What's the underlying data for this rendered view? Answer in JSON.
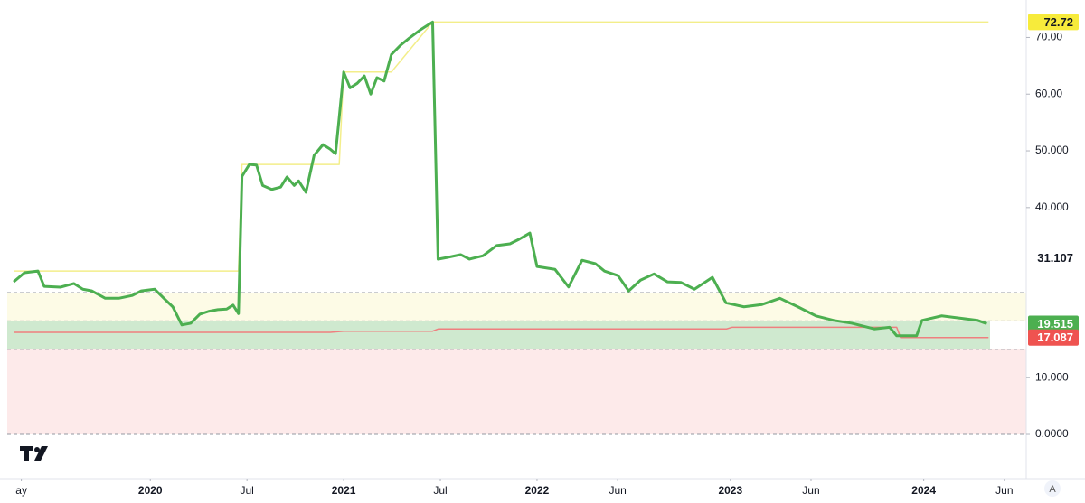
{
  "chart_data": {
    "type": "line",
    "grid": false,
    "xlim": [
      2019.26,
      2024.53
    ],
    "ylim": [
      -7.8,
      76.6
    ],
    "xticks": [
      {
        "value": 2019.333,
        "label": "ay"
      },
      {
        "value": 2020,
        "label": "2020"
      },
      {
        "value": 2020.5,
        "label": "Jul"
      },
      {
        "value": 2021,
        "label": "2021"
      },
      {
        "value": 2021.5,
        "label": "Jul"
      },
      {
        "value": 2022,
        "label": "2022"
      },
      {
        "value": 2022.417,
        "label": "Jun"
      },
      {
        "value": 2023,
        "label": "2023"
      },
      {
        "value": 2023.417,
        "label": "Jun"
      },
      {
        "value": 2024,
        "label": "2024"
      },
      {
        "value": 2024.417,
        "label": "Jun"
      }
    ],
    "yticks": [
      {
        "value": 70,
        "label": "70.00"
      },
      {
        "value": 60,
        "label": "60.00"
      },
      {
        "value": 50,
        "label": "50.000"
      },
      {
        "value": 40,
        "label": "40.000"
      },
      {
        "value": 10,
        "label": "10.000"
      },
      {
        "value": 0,
        "label": "0.0000"
      }
    ],
    "bands": [
      {
        "from": 0,
        "to": 15,
        "color": "#fdeaea"
      },
      {
        "from": 15,
        "to": 20,
        "color": "#cfe9cf"
      },
      {
        "from": 20,
        "to": 25,
        "color": "#fdfbe6"
      }
    ],
    "hlines": [
      0,
      15,
      20,
      25
    ],
    "series": [
      {
        "color": "#f3ee8a",
        "width": 1.5,
        "x": [
          2019.293,
          2020.456,
          2020.474,
          2020.977,
          2021.0,
          2021.247,
          2021.46,
          2024.335
        ],
        "values": [
          28.8,
          28.8,
          47.6,
          47.6,
          63.9,
          63.9,
          72.72,
          72.72
        ]
      },
      {
        "color": "#ef7f7f",
        "width": 1.5,
        "x": [
          2019.293,
          2020.93,
          2021.0,
          2021.46,
          2021.49,
          2022.98,
          2023.01,
          2023.86,
          2023.88,
          2024.335
        ],
        "values": [
          18.0,
          18.0,
          18.2,
          18.2,
          18.6,
          18.6,
          18.9,
          18.9,
          17.087,
          17.087
        ]
      },
      {
        "color": "#4caf50",
        "width": 3,
        "x": [
          2019.293,
          2019.349,
          2019.419,
          2019.451,
          2019.535,
          2019.605,
          2019.651,
          2019.698,
          2019.767,
          2019.837,
          2019.907,
          2019.953,
          2020.023,
          2020.07,
          2020.116,
          2020.163,
          2020.209,
          2020.256,
          2020.302,
          2020.349,
          2020.395,
          2020.428,
          2020.456,
          2020.474,
          2020.512,
          2020.549,
          2020.581,
          2020.628,
          2020.674,
          2020.707,
          2020.744,
          2020.767,
          2020.805,
          2020.847,
          2020.893,
          2020.93,
          2020.958,
          2020.977,
          2021.0,
          2021.033,
          2021.07,
          2021.107,
          2021.14,
          2021.172,
          2021.209,
          2021.247,
          2021.293,
          2021.34,
          2021.395,
          2021.46,
          2021.488,
          2021.535,
          2021.605,
          2021.651,
          2021.721,
          2021.791,
          2021.86,
          2021.907,
          2021.963,
          2022.0,
          2022.093,
          2022.163,
          2022.233,
          2022.302,
          2022.349,
          2022.419,
          2022.474,
          2022.535,
          2022.605,
          2022.674,
          2022.744,
          2022.814,
          2022.907,
          2022.977,
          2023.07,
          2023.163,
          2023.256,
          2023.349,
          2023.442,
          2023.535,
          2023.628,
          2023.744,
          2023.823,
          2023.86,
          2023.963,
          2023.991,
          2024.093,
          2024.186,
          2024.279,
          2024.326
        ],
        "values": [
          26.9,
          28.5,
          28.8,
          26.1,
          25.96,
          26.6,
          25.6,
          25.3,
          24.0,
          24.0,
          24.5,
          25.3,
          25.6,
          24.0,
          22.5,
          19.3,
          19.6,
          21.2,
          21.7,
          22.0,
          22.1,
          22.8,
          21.3,
          45.5,
          47.6,
          47.5,
          43.9,
          43.2,
          43.6,
          45.4,
          43.9,
          44.7,
          42.7,
          49.2,
          51.1,
          50.3,
          49.5,
          55.9,
          63.9,
          61.1,
          61.9,
          63.2,
          60.0,
          62.9,
          62.3,
          67.0,
          68.6,
          69.9,
          71.3,
          72.72,
          30.9,
          31.2,
          31.7,
          30.9,
          31.5,
          33.3,
          33.6,
          34.4,
          35.5,
          29.6,
          29.1,
          26.0,
          30.7,
          30.1,
          28.8,
          28.0,
          25.3,
          27.2,
          28.3,
          26.9,
          26.8,
          25.6,
          27.7,
          23.2,
          22.5,
          22.9,
          24.0,
          22.5,
          20.9,
          20.1,
          19.6,
          18.6,
          18.9,
          17.4,
          17.4,
          20.1,
          20.9,
          20.5,
          20.1,
          19.515
        ]
      }
    ],
    "price_labels": [
      {
        "value": 72.72,
        "label": "72.72",
        "color": "#f7eb3b",
        "text_color": "#131722"
      },
      {
        "value": 31.107,
        "label": "31.107",
        "color": "#ffffff",
        "text_color": "#131722"
      },
      {
        "value": 19.515,
        "label": "19.515",
        "color": "#4caf50",
        "text_color": "#ffffff"
      },
      {
        "value": 17.087,
        "label": "17.087",
        "color": "#ef5350",
        "text_color": "#ffffff"
      }
    ]
  }
}
